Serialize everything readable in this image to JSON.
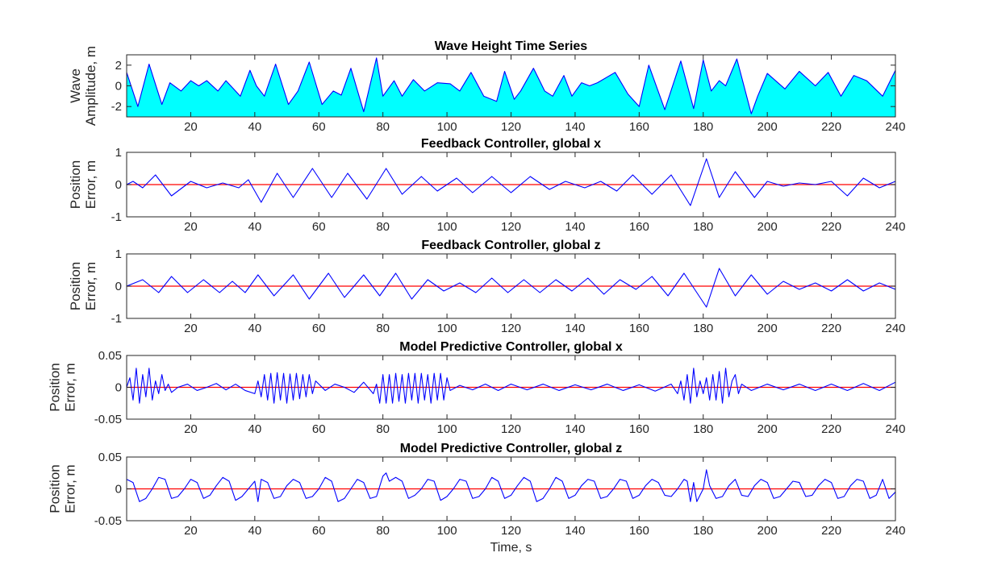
{
  "chart_data": [
    {
      "type": "area",
      "title": "Wave Height Time Series",
      "ylabel_lines": [
        "Wave",
        "Amplitude, m"
      ],
      "xlabel": "",
      "xlim": [
        0,
        240
      ],
      "ylim": [
        -3,
        3
      ],
      "xticks": [
        "20",
        "40",
        "60",
        "80",
        "100",
        "120",
        "140",
        "160",
        "180",
        "200",
        "220",
        "240"
      ],
      "yticks": [
        "-2",
        "0",
        "2"
      ],
      "fill_color": "#00ffff",
      "line_color": "#0000ff",
      "reference_line": null,
      "series": [
        {
          "x": [
            0,
            3.5,
            7,
            11,
            13.5,
            17,
            20,
            22.5,
            25,
            28.5,
            31,
            35.5,
            38.5,
            40.5,
            43,
            46.5,
            50.5,
            53.5,
            57,
            61,
            64.5,
            67,
            70,
            74,
            78,
            80,
            83.5,
            86,
            89.5,
            93,
            97,
            101,
            104,
            107.5,
            111.5,
            115.5,
            118,
            121,
            123,
            127,
            130.5,
            133,
            136.5,
            139,
            142,
            144.5,
            147,
            152.5,
            156.5,
            160,
            163,
            168,
            173,
            177,
            180,
            182.5,
            185,
            187,
            190.5,
            195,
            197,
            200,
            205.5,
            210,
            215,
            219,
            223,
            227,
            231,
            236,
            240
          ],
          "y": [
            1.3,
            -2.0,
            2.1,
            -1.8,
            0.3,
            -0.5,
            0.5,
            0.0,
            0.5,
            -0.5,
            0.5,
            -1.0,
            1.5,
            0.0,
            -1.0,
            2.1,
            -1.8,
            -0.5,
            2.3,
            -1.8,
            -0.5,
            -0.9,
            1.7,
            -2.5,
            2.7,
            -1.0,
            0.5,
            -1.0,
            0.6,
            -0.5,
            0.3,
            0.2,
            -0.5,
            1.3,
            -1.0,
            -1.5,
            1.4,
            -1.3,
            -0.5,
            1.7,
            -0.5,
            -1.0,
            1.0,
            -1.0,
            0.3,
            0.0,
            0.3,
            1.3,
            -0.8,
            -2.0,
            2.0,
            -2.3,
            2.4,
            -2.2,
            2.5,
            -0.5,
            0.5,
            0.0,
            2.6,
            -2.7,
            -1.0,
            1.2,
            -0.3,
            1.4,
            0.0,
            1.3,
            -1.0,
            1.0,
            0.5,
            -1.0,
            1.5
          ]
        }
      ]
    },
    {
      "type": "line",
      "title": "Feedback Controller, global x",
      "ylabel_lines": [
        "Position",
        "Error, m"
      ],
      "xlabel": "",
      "xlim": [
        0,
        240
      ],
      "ylim": [
        -1,
        1
      ],
      "xticks": [
        "20",
        "40",
        "60",
        "80",
        "100",
        "120",
        "140",
        "160",
        "180",
        "200",
        "220",
        "240"
      ],
      "yticks": [
        "-1",
        "0",
        "1"
      ],
      "line_color": "#0000ff",
      "reference_line": {
        "y": 0,
        "color": "#ff0000"
      },
      "series": [
        {
          "x": [
            0,
            2,
            5,
            9,
            14,
            20,
            25,
            30,
            35,
            38,
            42,
            47,
            52,
            58,
            64,
            69,
            75,
            81,
            86,
            92,
            97,
            103,
            108,
            114,
            120,
            126,
            132,
            137,
            143,
            148,
            153,
            158,
            164,
            170,
            176,
            181,
            185,
            190,
            196,
            200,
            205,
            210,
            215,
            220,
            225,
            230,
            235,
            240
          ],
          "y": [
            0,
            0.1,
            -0.1,
            0.3,
            -0.35,
            0.1,
            -0.1,
            0.05,
            -0.1,
            0.15,
            -0.55,
            0.35,
            -0.4,
            0.5,
            -0.4,
            0.35,
            -0.45,
            0.5,
            -0.3,
            0.25,
            -0.2,
            0.2,
            -0.25,
            0.25,
            -0.25,
            0.25,
            -0.15,
            0.1,
            -0.1,
            0.1,
            -0.2,
            0.3,
            -0.3,
            0.3,
            -0.65,
            0.8,
            -0.4,
            0.4,
            -0.4,
            0.1,
            -0.05,
            0.05,
            0.0,
            0.1,
            -0.35,
            0.2,
            -0.1,
            0.1
          ]
        }
      ]
    },
    {
      "type": "line",
      "title": "Feedback Controller, global z",
      "ylabel_lines": [
        "Position",
        "Error, m"
      ],
      "xlabel": "",
      "xlim": [
        0,
        240
      ],
      "ylim": [
        -1,
        1
      ],
      "xticks": [
        "20",
        "40",
        "60",
        "80",
        "100",
        "120",
        "140",
        "160",
        "180",
        "200",
        "220",
        "240"
      ],
      "yticks": [
        "-1",
        "0",
        "1"
      ],
      "line_color": "#0000ff",
      "reference_line": {
        "y": 0,
        "color": "#ff0000"
      },
      "series": [
        {
          "x": [
            0,
            5,
            10,
            14,
            19,
            24,
            29,
            33,
            37,
            41,
            46,
            52,
            57,
            63,
            68,
            74,
            79,
            84,
            89,
            94,
            99,
            104,
            109,
            114,
            119,
            124,
            129,
            134,
            139,
            144,
            149,
            154,
            159,
            164,
            169,
            174,
            178,
            181,
            185,
            190,
            195,
            200,
            205,
            210,
            215,
            220,
            225,
            230,
            235,
            240
          ],
          "y": [
            0,
            0.2,
            -0.2,
            0.3,
            -0.2,
            0.2,
            -0.2,
            0.15,
            -0.2,
            0.35,
            -0.3,
            0.35,
            -0.4,
            0.4,
            -0.35,
            0.35,
            -0.3,
            0.4,
            -0.4,
            0.2,
            -0.15,
            0.1,
            -0.2,
            0.25,
            -0.2,
            0.2,
            -0.2,
            0.2,
            -0.15,
            0.25,
            -0.25,
            0.2,
            -0.1,
            0.3,
            -0.3,
            0.4,
            -0.2,
            -0.65,
            0.55,
            -0.3,
            0.35,
            -0.25,
            0.15,
            -0.1,
            0.1,
            -0.15,
            0.2,
            -0.15,
            0.1,
            -0.1
          ]
        }
      ]
    },
    {
      "type": "line",
      "title": "Model Predictive Controller, global x",
      "ylabel_lines": [
        "Position",
        "Error, m"
      ],
      "xlabel": "",
      "xlim": [
        0,
        240
      ],
      "ylim": [
        -0.05,
        0.05
      ],
      "xticks": [
        "20",
        "40",
        "60",
        "80",
        "100",
        "120",
        "140",
        "160",
        "180",
        "200",
        "220",
        "240"
      ],
      "yticks": [
        "-0.05",
        "0",
        "0.05"
      ],
      "line_color": "#0000ff",
      "reference_line": {
        "y": 0,
        "color": "#ff0000"
      },
      "series": [
        {
          "x": [
            0,
            1,
            2,
            3,
            4,
            5,
            6,
            7,
            8,
            9,
            10,
            11,
            12,
            13,
            14,
            16,
            19,
            22,
            25,
            28,
            31,
            34,
            37,
            40,
            41,
            42,
            43,
            44,
            45,
            46,
            47,
            48,
            49,
            50,
            51,
            52,
            53,
            54,
            55,
            56,
            57,
            58,
            59,
            62,
            65,
            68,
            71,
            74,
            77,
            78,
            79,
            80,
            81,
            82,
            83,
            84,
            85,
            86,
            87,
            88,
            89,
            90,
            91,
            92,
            93,
            94,
            95,
            96,
            97,
            98,
            99,
            100,
            101,
            104,
            108,
            112,
            116,
            120,
            125,
            130,
            135,
            140,
            145,
            150,
            155,
            160,
            165,
            170,
            172,
            173,
            174,
            175,
            176,
            177,
            178,
            179,
            180,
            181,
            182,
            183,
            184,
            185,
            186,
            187,
            188,
            189,
            190,
            191,
            192,
            195,
            200,
            205,
            210,
            215,
            220,
            225,
            230,
            235,
            240
          ],
          "y": [
            0,
            0.015,
            -0.02,
            0.03,
            -0.025,
            0.02,
            -0.015,
            0.03,
            -0.02,
            0.01,
            -0.01,
            0.02,
            -0.005,
            0.005,
            -0.008,
            0.0,
            0.005,
            -0.005,
            0.0,
            0.006,
            -0.004,
            0.005,
            -0.005,
            -0.01,
            0.01,
            -0.015,
            0.02,
            -0.02,
            0.022,
            -0.025,
            0.023,
            -0.02,
            0.022,
            -0.025,
            0.021,
            -0.02,
            0.022,
            -0.018,
            0.02,
            -0.015,
            0.02,
            -0.01,
            0.01,
            -0.005,
            0.005,
            0.0,
            -0.008,
            0.008,
            -0.01,
            0.005,
            -0.025,
            0.02,
            -0.025,
            0.02,
            -0.025,
            0.022,
            -0.022,
            0.02,
            -0.025,
            0.022,
            -0.02,
            0.022,
            -0.025,
            0.022,
            -0.02,
            0.02,
            -0.025,
            0.022,
            -0.02,
            0.022,
            -0.02,
            0.015,
            -0.005,
            0.003,
            -0.004,
            0.005,
            -0.005,
            0.005,
            -0.004,
            0.005,
            -0.005,
            0.004,
            -0.004,
            0.005,
            -0.005,
            0.004,
            -0.006,
            0.005,
            -0.01,
            0.01,
            -0.02,
            0.02,
            -0.025,
            0.03,
            -0.015,
            0.01,
            -0.01,
            0.015,
            -0.02,
            0.02,
            -0.02,
            0.025,
            -0.025,
            0.03,
            -0.015,
            0.01,
            0.02,
            -0.01,
            0.005,
            -0.005,
            0.005,
            -0.004,
            0.005,
            -0.005,
            0.005,
            -0.005,
            0.006,
            -0.005,
            0.008
          ]
        }
      ]
    },
    {
      "type": "line",
      "title": "Model Predictive Controller, global z",
      "ylabel_lines": [
        "Position",
        "Error, m"
      ],
      "xlabel": "Time, s",
      "xlim": [
        0,
        240
      ],
      "ylim": [
        -0.05,
        0.05
      ],
      "xticks": [
        "20",
        "40",
        "60",
        "80",
        "100",
        "120",
        "140",
        "160",
        "180",
        "200",
        "220",
        "240"
      ],
      "yticks": [
        "-0.05",
        "0",
        "0.05"
      ],
      "line_color": "#0000ff",
      "reference_line": {
        "y": 0,
        "color": "#ff0000"
      },
      "series": [
        {
          "x": [
            0,
            2,
            4,
            6,
            8,
            10,
            12,
            14,
            16,
            18,
            20,
            22,
            24,
            26,
            28,
            30,
            32,
            34,
            36,
            38,
            40,
            41,
            42,
            44,
            46,
            48,
            50,
            52,
            54,
            56,
            58,
            60,
            62,
            64,
            66,
            68,
            70,
            72,
            74,
            76,
            78,
            80,
            81,
            82,
            84,
            86,
            88,
            90,
            92,
            94,
            96,
            98,
            100,
            102,
            104,
            106,
            108,
            110,
            112,
            114,
            116,
            118,
            120,
            122,
            124,
            126,
            128,
            130,
            132,
            134,
            136,
            138,
            140,
            142,
            144,
            146,
            148,
            150,
            152,
            154,
            156,
            158,
            160,
            162,
            164,
            166,
            168,
            170,
            172,
            174,
            175,
            176,
            177,
            178,
            180,
            181,
            182,
            184,
            186,
            188,
            190,
            192,
            194,
            196,
            198,
            200,
            202,
            204,
            206,
            208,
            210,
            212,
            214,
            216,
            218,
            220,
            222,
            224,
            226,
            228,
            230,
            232,
            234,
            236,
            238,
            240
          ],
          "y": [
            0.015,
            0.01,
            -0.02,
            -0.015,
            0.0,
            0.018,
            0.015,
            -0.015,
            -0.012,
            0.0,
            0.015,
            0.01,
            -0.015,
            -0.01,
            0.005,
            0.018,
            0.012,
            -0.018,
            -0.012,
            0.0,
            0.012,
            -0.02,
            0.015,
            0.01,
            -0.015,
            -0.012,
            0.005,
            0.015,
            0.01,
            -0.015,
            -0.012,
            0.0,
            0.018,
            0.012,
            -0.02,
            -0.015,
            0.0,
            0.015,
            0.01,
            -0.015,
            -0.012,
            0.02,
            0.025,
            0.012,
            0.018,
            0.012,
            -0.015,
            -0.01,
            0.0,
            0.015,
            0.012,
            -0.018,
            -0.012,
            0.0,
            0.015,
            0.012,
            -0.015,
            -0.012,
            0.0,
            0.018,
            0.012,
            -0.015,
            -0.01,
            0.005,
            0.018,
            0.012,
            -0.02,
            -0.015,
            0.0,
            0.018,
            0.012,
            -0.015,
            -0.01,
            0.005,
            0.015,
            0.012,
            -0.015,
            -0.012,
            0.0,
            0.015,
            0.012,
            -0.015,
            -0.01,
            0.005,
            0.015,
            0.01,
            -0.01,
            -0.012,
            0.0,
            0.015,
            0.012,
            -0.02,
            0.01,
            -0.02,
            0.0,
            0.03,
            0.005,
            -0.015,
            -0.012,
            0.005,
            0.015,
            -0.01,
            -0.012,
            0.005,
            0.015,
            0.01,
            -0.015,
            -0.012,
            0.0,
            0.012,
            0.01,
            -0.012,
            -0.01,
            0.005,
            0.015,
            0.01,
            -0.015,
            -0.012,
            0.005,
            0.015,
            0.012,
            -0.015,
            -0.01,
            0.015,
            -0.015,
            -0.005
          ]
        }
      ]
    }
  ]
}
